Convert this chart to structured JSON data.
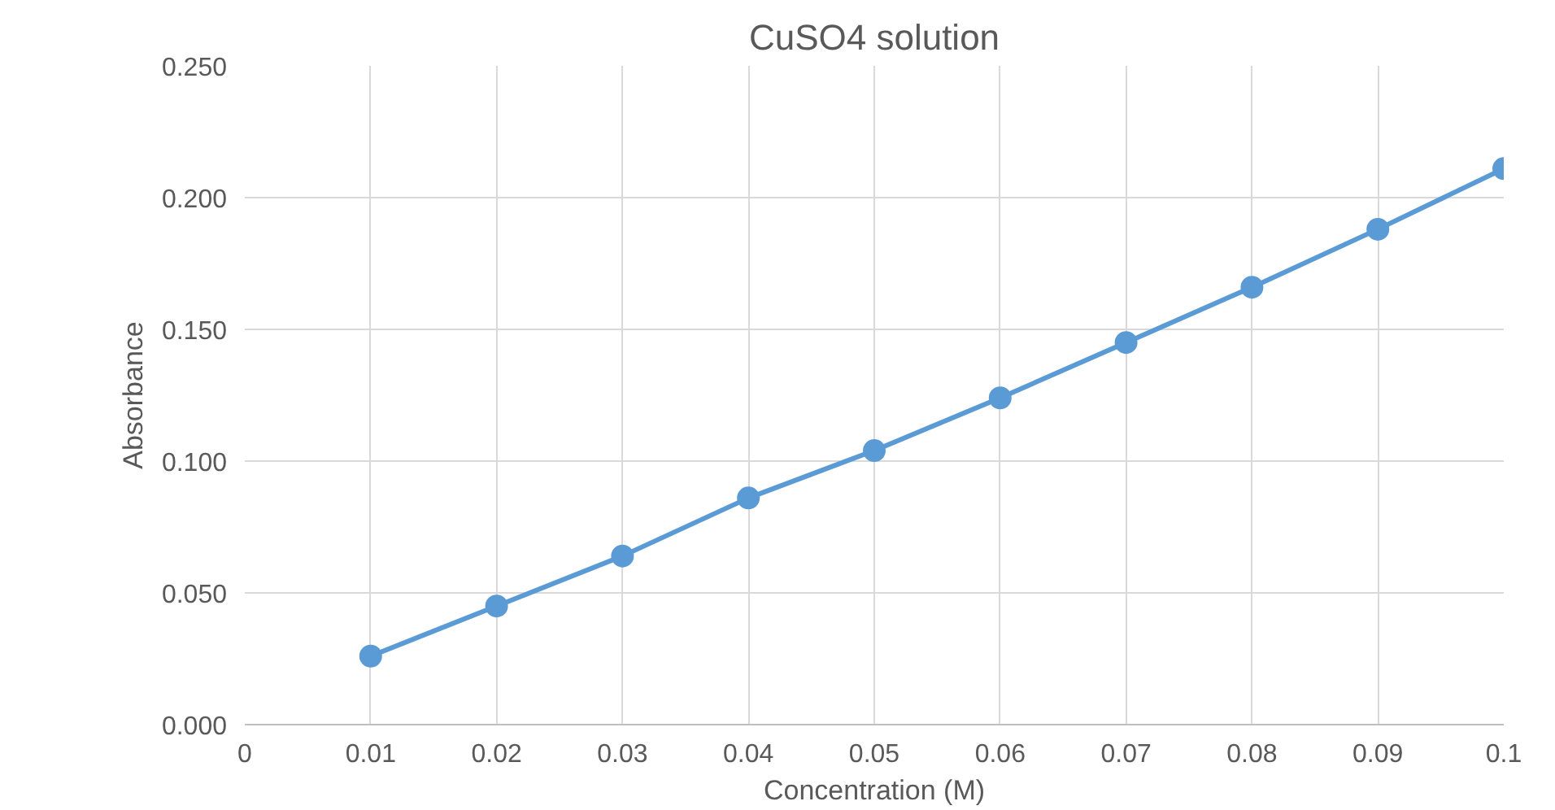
{
  "chart_data": {
    "type": "line",
    "title": "CuSO4 solution",
    "xlabel": "Concentration (M)",
    "ylabel": "Absorbance",
    "x": [
      0.01,
      0.02,
      0.03,
      0.04,
      0.05,
      0.06,
      0.07,
      0.08,
      0.09,
      0.1
    ],
    "series": [
      {
        "color": "#5b9bd5",
        "values": [
          0.026,
          0.045,
          0.064,
          0.086,
          0.104,
          0.124,
          0.145,
          0.166,
          0.188,
          0.211
        ]
      }
    ],
    "xlim": [
      0,
      0.1
    ],
    "xticks": [
      0,
      0.01,
      0.02,
      0.03,
      0.04,
      0.05,
      0.06,
      0.07,
      0.08,
      0.09,
      0.1
    ],
    "ylim": [
      0,
      0.25
    ],
    "yticks": [
      {
        "value": 0,
        "label": "0.000"
      },
      {
        "value": 0.05,
        "label": "0.050"
      },
      {
        "value": 0.1,
        "label": "0.100"
      },
      {
        "value": 0.15,
        "label": "0.150"
      },
      {
        "value": 0.2,
        "label": "0.200"
      },
      {
        "value": 0.25,
        "label": "0.250"
      }
    ],
    "grid": true,
    "marker": "circle",
    "line_style": "solid"
  }
}
